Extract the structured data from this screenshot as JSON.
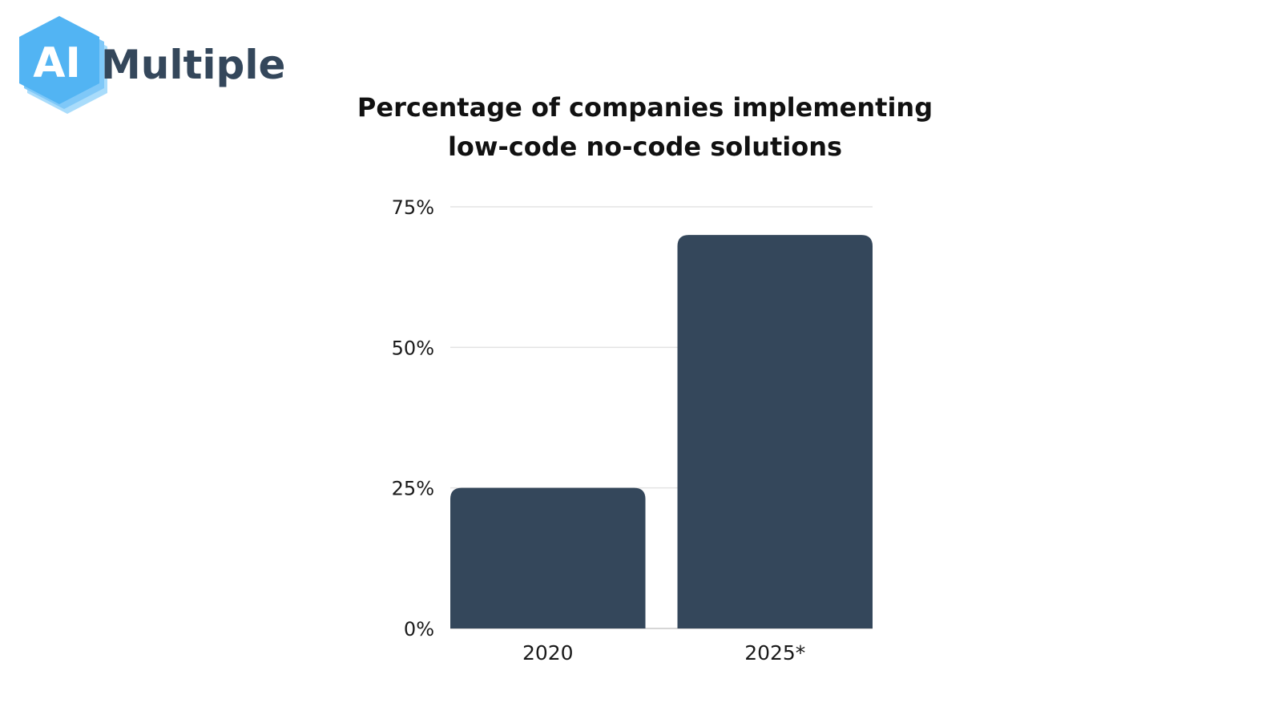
{
  "brand": {
    "logo_text": "AIMultiple",
    "primary_color": "#52b4f3",
    "text_color": "#34475b"
  },
  "chart_data": {
    "type": "bar",
    "title_lines": [
      "Percentage of companies implementing",
      "low-code no-code solutions"
    ],
    "categories": [
      "2020",
      "2025*"
    ],
    "values": [
      25,
      70
    ],
    "unit": "%",
    "ylim": [
      0,
      75
    ],
    "yticks": [
      0,
      25,
      50,
      75
    ],
    "ytick_labels": [
      "0%",
      "25%",
      "50%",
      "75%"
    ],
    "xlabel": "",
    "ylabel": "",
    "grid": true,
    "bar_color": "#34475b"
  }
}
